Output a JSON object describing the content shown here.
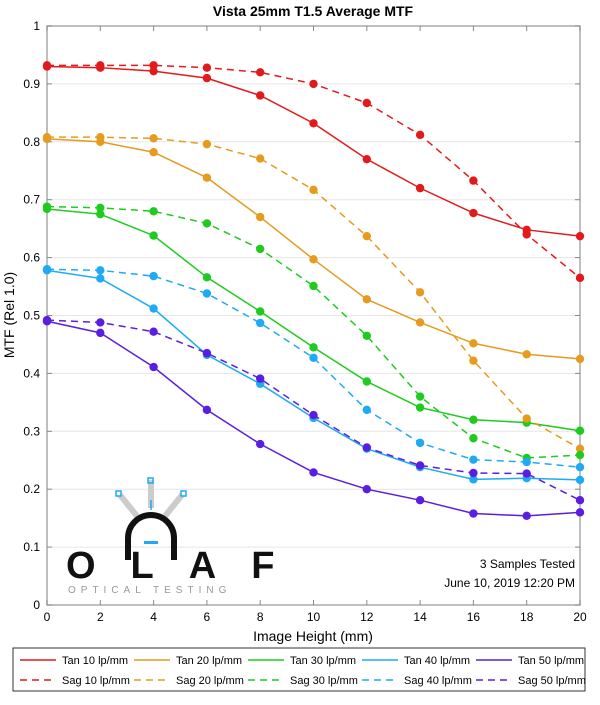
{
  "chart_data": {
    "type": "line",
    "title": "Vista 25mm T1.5 Average MTF",
    "xlabel": "Image Height (mm)",
    "ylabel": "MTF (Rel 1.0)",
    "xlim": [
      0,
      20
    ],
    "ylim": [
      0,
      1
    ],
    "xticks": [
      "0",
      "2",
      "4",
      "6",
      "8",
      "10",
      "12",
      "14",
      "16",
      "18",
      "20"
    ],
    "yticks": [
      "0",
      "0.1",
      "0.2",
      "0.3",
      "0.4",
      "0.5",
      "0.6",
      "0.7",
      "0.8",
      "0.9",
      "1"
    ],
    "grid": "horizontal",
    "legend_position": "bottom",
    "x": [
      0,
      2,
      4,
      6,
      8,
      10,
      12,
      14,
      16,
      18,
      20
    ],
    "series": [
      {
        "name": "Tan 10 lp/mm",
        "color": "#e31a1c",
        "style": "solid",
        "values": [
          0.93,
          0.928,
          0.922,
          0.91,
          0.88,
          0.832,
          0.77,
          0.72,
          0.677,
          0.648,
          0.637
        ]
      },
      {
        "name": "Tan 20 lp/mm",
        "color": "#e69a1e",
        "style": "solid",
        "values": [
          0.805,
          0.8,
          0.782,
          0.738,
          0.67,
          0.597,
          0.528,
          0.488,
          0.452,
          0.433,
          0.425
        ]
      },
      {
        "name": "Tan 30 lp/mm",
        "color": "#1ecb1e",
        "style": "solid",
        "values": [
          0.684,
          0.675,
          0.638,
          0.566,
          0.507,
          0.445,
          0.386,
          0.341,
          0.32,
          0.315,
          0.301
        ]
      },
      {
        "name": "Tan 40 lp/mm",
        "color": "#1eaaf5",
        "style": "solid",
        "values": [
          0.578,
          0.564,
          0.512,
          0.432,
          0.382,
          0.323,
          0.27,
          0.238,
          0.217,
          0.219,
          0.216
        ]
      },
      {
        "name": "Tan 50 lp/mm",
        "color": "#5a1ee0",
        "style": "solid",
        "values": [
          0.49,
          0.47,
          0.411,
          0.337,
          0.278,
          0.229,
          0.2,
          0.181,
          0.158,
          0.154,
          0.16
        ]
      },
      {
        "name": "Sag 10 lp/mm",
        "color": "#e31a1c",
        "style": "dashed",
        "values": [
          0.932,
          0.932,
          0.932,
          0.928,
          0.92,
          0.9,
          0.867,
          0.812,
          0.733,
          0.64,
          0.565
        ]
      },
      {
        "name": "Sag 20 lp/mm",
        "color": "#e69a1e",
        "style": "dashed",
        "values": [
          0.808,
          0.808,
          0.806,
          0.796,
          0.771,
          0.717,
          0.637,
          0.54,
          0.422,
          0.322,
          0.27
        ]
      },
      {
        "name": "Sag 30 lp/mm",
        "color": "#1ecb1e",
        "style": "dashed",
        "values": [
          0.688,
          0.686,
          0.68,
          0.659,
          0.615,
          0.551,
          0.465,
          0.36,
          0.288,
          0.254,
          0.259
        ]
      },
      {
        "name": "Sag 40 lp/mm",
        "color": "#1eaaf5",
        "style": "dashed",
        "values": [
          0.58,
          0.578,
          0.568,
          0.538,
          0.487,
          0.427,
          0.337,
          0.28,
          0.251,
          0.247,
          0.238
        ]
      },
      {
        "name": "Sag 50 lp/mm",
        "color": "#5a1ee0",
        "style": "dashed",
        "values": [
          0.492,
          0.488,
          0.472,
          0.435,
          0.391,
          0.328,
          0.272,
          0.241,
          0.228,
          0.227,
          0.181
        ]
      }
    ],
    "annotations": [
      "3 Samples Tested",
      "June 10, 2019 12:20 PM"
    ]
  },
  "logo": {
    "name": "OLAF",
    "tagline": "OPTICAL TESTING"
  }
}
